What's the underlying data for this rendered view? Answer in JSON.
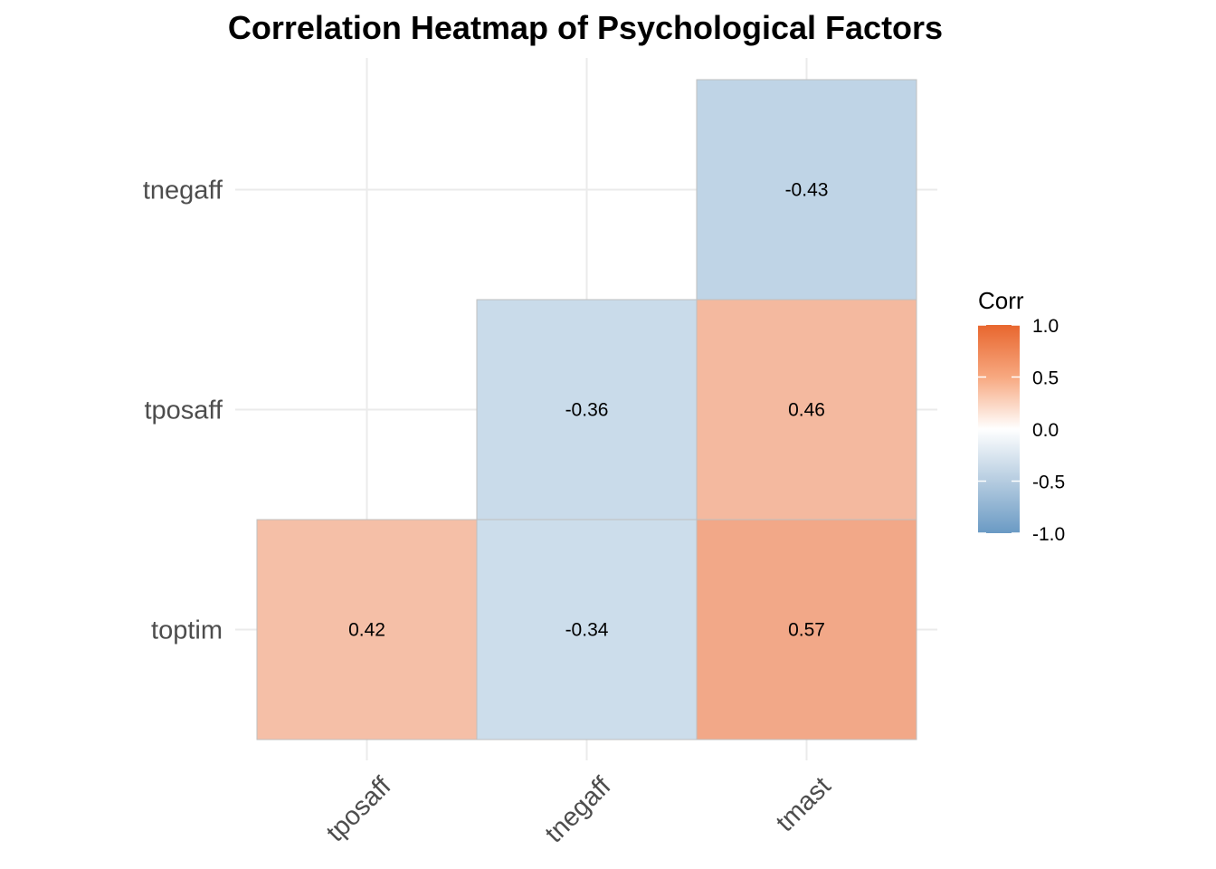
{
  "chart_data": {
    "type": "heatmap",
    "title": "Correlation Heatmap of Psychological Factors",
    "xlabel": "",
    "ylabel": "",
    "x_categories": [
      "tposaff",
      "tnegaff",
      "tmast"
    ],
    "y_categories": [
      "toptim",
      "tposaff",
      "tnegaff"
    ],
    "cells": [
      {
        "x": "tmast",
        "y": "tnegaff",
        "value": -0.43,
        "label": "-0.43"
      },
      {
        "x": "tnegaff",
        "y": "tposaff",
        "value": -0.36,
        "label": "-0.36"
      },
      {
        "x": "tmast",
        "y": "tposaff",
        "value": 0.46,
        "label": "0.46"
      },
      {
        "x": "tposaff",
        "y": "toptim",
        "value": 0.42,
        "label": "0.42"
      },
      {
        "x": "tnegaff",
        "y": "toptim",
        "value": -0.34,
        "label": "-0.34"
      },
      {
        "x": "tmast",
        "y": "toptim",
        "value": 0.57,
        "label": "0.57"
      }
    ],
    "legend": {
      "title": "Corr",
      "position": "right",
      "range": [
        -1,
        1
      ],
      "ticks": [
        1.0,
        0.5,
        0.0,
        -0.5,
        -1.0
      ],
      "tick_labels": [
        "1.0",
        "0.5",
        "0.0",
        "-0.5",
        "-1.0"
      ]
    },
    "colors": {
      "low": "#6a9ac4",
      "mid": "#ffffff",
      "high": "#e8662e"
    },
    "grid": true
  }
}
